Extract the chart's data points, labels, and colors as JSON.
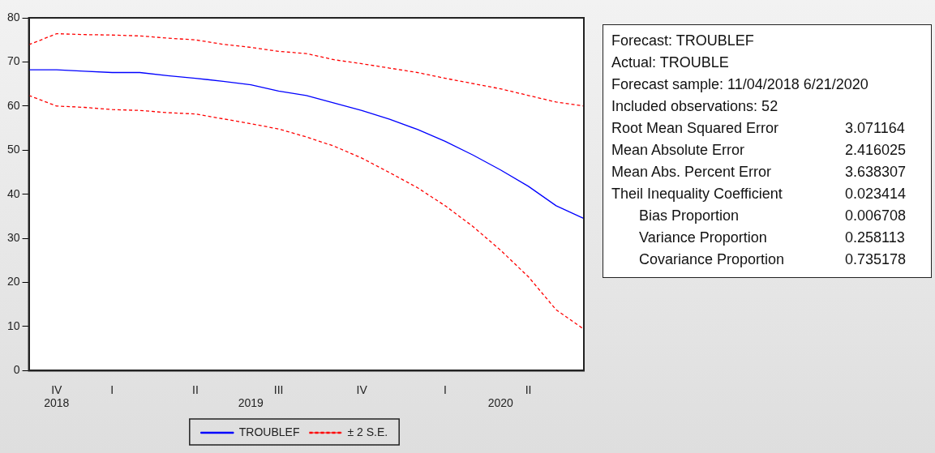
{
  "chart_data": {
    "type": "line",
    "categories": [
      null,
      "IV\n2018",
      null,
      "I",
      null,
      null,
      "II",
      null,
      "\n2019",
      "III",
      null,
      null,
      "IV",
      null,
      null,
      "I",
      null,
      "\n2020",
      "II",
      null,
      null
    ],
    "series": [
      {
        "name": "TROUBLEF",
        "color": "#0000ff",
        "line_style": "solid",
        "values": [
          68.2,
          68.2,
          67.9,
          67.6,
          67.6,
          66.9,
          66.3,
          65.6,
          64.8,
          63.4,
          62.4,
          60.7,
          59.0,
          57.0,
          54.7,
          52.0,
          48.9,
          45.5,
          41.8,
          37.4,
          34.5
        ]
      },
      {
        "name": "± 2 S.E.",
        "color": "#ff0000",
        "line_style": "dashed",
        "values": [
          73.9,
          76.4,
          76.2,
          76.1,
          75.9,
          75.4,
          75.0,
          74.0,
          73.3,
          72.4,
          71.9,
          70.5,
          69.6,
          68.6,
          67.6,
          66.3,
          65.1,
          63.9,
          62.4,
          60.9,
          60.0
        ]
      },
      {
        "color": "#ff0000",
        "line_style": "dashed",
        "values": [
          62.4,
          60.0,
          59.7,
          59.2,
          59.0,
          58.5,
          58.2,
          57.1,
          56.0,
          54.8,
          53.0,
          50.9,
          48.2,
          44.9,
          41.5,
          37.4,
          32.7,
          27.3,
          21.3,
          13.8,
          9.4
        ]
      }
    ],
    "ylim": [
      0,
      80
    ],
    "yticks": [
      0,
      10,
      20,
      30,
      40,
      50,
      60,
      70,
      80
    ],
    "grid": false,
    "legend": "bottom",
    "marker": "none",
    "annotations": [
      "Forecast: TROUBLEF",
      "Actual: TROUBLE",
      "Forecast sample: 11/04/2018 6/21/2020",
      "Included observations: 52",
      "Root Mean Squared Error\t3.071164",
      "Mean Absolute Error\t2.416025",
      "Mean Abs. Percent Error\t3.638307",
      "Theil Inequality Coefficient\t0.023414",
      "    Bias Proportion\t0.006708",
      "    Variance Proportion\t0.258113",
      "    Covariance Proportion\t0.735178"
    ]
  }
}
